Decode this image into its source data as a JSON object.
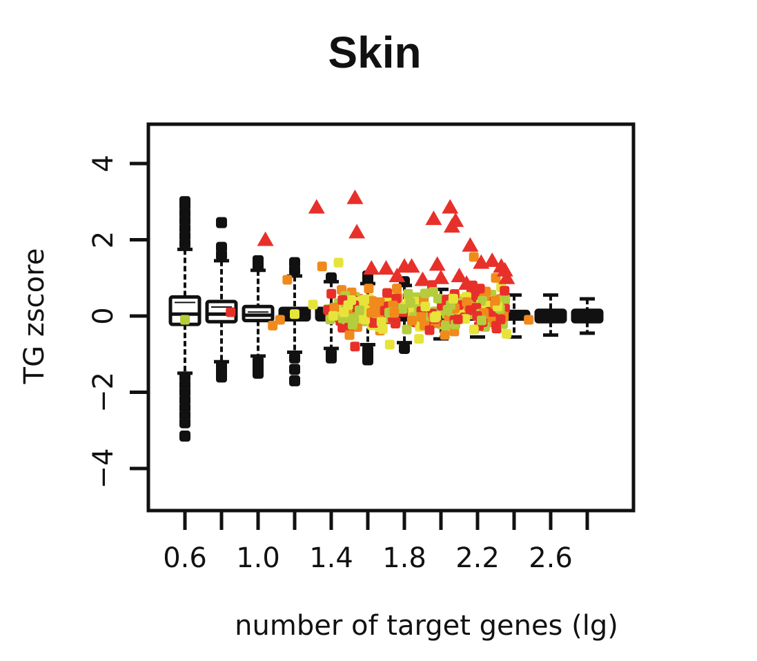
{
  "chart_data": {
    "type": "scatter",
    "title": "Skin",
    "xlabel": "number of target genes (lg)",
    "ylabel": "TG zscore",
    "xlim": [
      0.3,
      2.9
    ],
    "ylim": [
      -5,
      5
    ],
    "x_ticks": [
      0.6,
      0.8,
      1.0,
      1.2,
      1.4,
      1.6,
      1.8,
      2.0,
      2.2,
      2.4,
      2.6,
      2.8
    ],
    "x_tick_labels": [
      "0.6",
      "",
      "1.0",
      "",
      "1.4",
      "",
      "1.8",
      "",
      "2.2",
      "",
      "2.6",
      ""
    ],
    "y_ticks": [
      4,
      2,
      0,
      -2,
      -4
    ],
    "y_tick_labels": [
      "4",
      "2",
      "0",
      "−2",
      "−4"
    ],
    "colors": {
      "black": "#111111",
      "red": "#e8302a",
      "orange": "#f08a1c",
      "yellow": "#e6e43a",
      "yellowgreen": "#b5cc3c"
    },
    "boxplots": [
      {
        "x": 0.6,
        "q1": -0.22,
        "median": 0.05,
        "q3": 0.5,
        "whisker_low": -1.5,
        "whisker_high": 1.75,
        "outliers_low": [
          -1.6,
          -1.8,
          -2.0,
          -2.2,
          -2.4,
          -2.6,
          -2.8,
          -3.15
        ],
        "outliers_high": [
          1.9,
          2.1,
          2.3,
          2.5,
          2.7,
          2.9,
          3.0
        ]
      },
      {
        "x": 0.8,
        "q1": -0.15,
        "median": 0.05,
        "q3": 0.38,
        "whisker_low": -1.2,
        "whisker_high": 1.45,
        "outliers_low": [
          -1.3,
          -1.45,
          -1.6
        ],
        "outliers_high": [
          1.6,
          1.8,
          2.45
        ]
      },
      {
        "x": 1.0,
        "q1": -0.12,
        "median": 0.02,
        "q3": 0.25,
        "whisker_low": -1.05,
        "whisker_high": 1.2,
        "outliers_low": [
          -1.2,
          -1.35,
          -1.5
        ],
        "outliers_high": [
          1.3,
          1.45
        ]
      },
      {
        "x": 1.2,
        "q1": -0.1,
        "median": 0.02,
        "q3": 0.2,
        "whisker_low": -0.95,
        "whisker_high": 1.05,
        "outliers_low": [
          -1.1,
          -1.4,
          -1.7
        ],
        "outliers_high": [
          1.2,
          1.4
        ]
      },
      {
        "x": 1.4,
        "q1": -0.1,
        "median": 0.0,
        "q3": 0.2,
        "whisker_low": -0.85,
        "whisker_high": 0.9,
        "outliers_low": [
          -1.0,
          -1.1
        ],
        "outliers_high": [
          1.0
        ]
      },
      {
        "x": 1.6,
        "q1": -0.1,
        "median": 0.0,
        "q3": 0.18,
        "whisker_low": -0.75,
        "whisker_high": 0.85,
        "outliers_low": [
          -0.9,
          -1.05,
          -1.15
        ],
        "outliers_high": [
          0.95,
          1.05
        ]
      },
      {
        "x": 1.8,
        "q1": -0.1,
        "median": 0.0,
        "q3": 0.15,
        "whisker_low": -0.7,
        "whisker_high": 0.8,
        "outliers_low": [
          -0.85
        ],
        "outliers_high": [
          0.9
        ]
      },
      {
        "x": 2.0,
        "q1": -0.08,
        "median": 0.0,
        "q3": 0.12,
        "whisker_low": -0.6,
        "whisker_high": 0.7,
        "outliers_low": [],
        "outliers_high": []
      },
      {
        "x": 2.2,
        "q1": -0.08,
        "median": 0.0,
        "q3": 0.12,
        "whisker_low": -0.55,
        "whisker_high": 0.6,
        "outliers_low": [],
        "outliers_high": []
      },
      {
        "x": 2.4,
        "q1": -0.08,
        "median": 0.0,
        "q3": 0.12,
        "whisker_low": -0.55,
        "whisker_high": 0.55,
        "outliers_low": [],
        "outliers_high": []
      },
      {
        "x": 2.6,
        "q1": -0.15,
        "median": 0.0,
        "q3": 0.15,
        "whisker_low": -0.5,
        "whisker_high": 0.55,
        "outliers_low": [],
        "outliers_high": []
      },
      {
        "x": 2.8,
        "q1": -0.15,
        "median": 0.0,
        "q3": 0.15,
        "whisker_low": -0.45,
        "whisker_high": 0.45,
        "outliers_low": [],
        "outliers_high": []
      }
    ],
    "highlighted_triangles": [
      {
        "x": 1.04,
        "y": 2.0
      },
      {
        "x": 1.32,
        "y": 2.85
      },
      {
        "x": 1.53,
        "y": 3.1
      },
      {
        "x": 1.54,
        "y": 2.2
      },
      {
        "x": 1.96,
        "y": 2.55
      },
      {
        "x": 2.05,
        "y": 2.85
      },
      {
        "x": 2.08,
        "y": 2.5
      },
      {
        "x": 2.06,
        "y": 2.35
      },
      {
        "x": 2.16,
        "y": 1.85
      },
      {
        "x": 1.62,
        "y": 1.25
      },
      {
        "x": 1.7,
        "y": 1.25
      },
      {
        "x": 1.8,
        "y": 1.3
      },
      {
        "x": 1.84,
        "y": 1.3
      },
      {
        "x": 1.98,
        "y": 1.35
      },
      {
        "x": 2.22,
        "y": 1.4
      },
      {
        "x": 2.28,
        "y": 1.45
      },
      {
        "x": 2.33,
        "y": 1.3
      },
      {
        "x": 2.35,
        "y": 1.2
      },
      {
        "x": 1.9,
        "y": 0.95
      },
      {
        "x": 2.0,
        "y": 1.0
      },
      {
        "x": 2.1,
        "y": 1.05
      },
      {
        "x": 2.14,
        "y": 0.85
      },
      {
        "x": 1.76,
        "y": 1.05
      },
      {
        "x": 2.36,
        "y": 1.0
      }
    ],
    "highlighted_squares": [
      {
        "x": 0.6,
        "y": -0.1,
        "c": "yellowgreen"
      },
      {
        "x": 0.85,
        "y": 0.1,
        "c": "red"
      },
      {
        "x": 1.08,
        "y": -0.25,
        "c": "orange"
      },
      {
        "x": 1.12,
        "y": -0.1,
        "c": "orange"
      },
      {
        "x": 1.16,
        "y": 0.95,
        "c": "orange"
      },
      {
        "x": 1.2,
        "y": 0.05,
        "c": "yellow"
      },
      {
        "x": 1.3,
        "y": 0.3,
        "c": "yellow"
      },
      {
        "x": 1.35,
        "y": 1.3,
        "c": "orange"
      },
      {
        "x": 1.44,
        "y": 1.4,
        "c": "yellow"
      },
      {
        "x": 1.47,
        "y": 0.1,
        "c": "yellow"
      },
      {
        "x": 1.5,
        "y": -0.5,
        "c": "orange"
      },
      {
        "x": 1.53,
        "y": -0.8,
        "c": "red"
      },
      {
        "x": 2.3,
        "y": 1.0,
        "c": "orange"
      },
      {
        "x": 2.18,
        "y": 1.55,
        "c": "orange"
      },
      {
        "x": 1.88,
        "y": -0.6,
        "c": "yellow"
      },
      {
        "x": 1.72,
        "y": -0.75,
        "c": "yellow"
      },
      {
        "x": 2.48,
        "y": -0.1,
        "c": "orange"
      }
    ],
    "square_cloud": {
      "x_range": [
        1.38,
        2.36
      ],
      "y_mean": 0.2,
      "y_spread": 0.45,
      "count": 260,
      "colors": [
        "red",
        "orange",
        "yellow",
        "yellowgreen"
      ]
    }
  }
}
